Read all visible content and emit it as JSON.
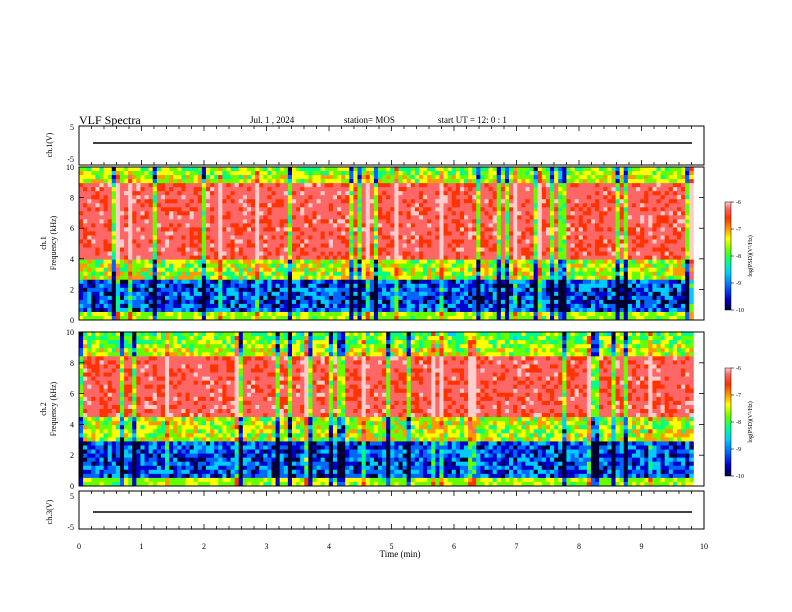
{
  "header": {
    "title": "VLF Spectra",
    "date": "Jul.  1  , 2024",
    "station": "station= MOS",
    "start": "start  UT  =   12: 0   : 1"
  },
  "panels": {
    "top_ylabel": "ch.1(V)",
    "ch1_label": "ch.1",
    "ch2_label": "ch.2",
    "freq_label": "Frequency  (kHz)",
    "bottom_ylabel": "ch.3(V)",
    "xlabel": "Time  (min)",
    "colorbar_label": "log(PSD)(V²/Hz)"
  },
  "chart_data": [
    {
      "type": "line",
      "name": "ch.1 waveform",
      "ylabel": "ch.1(V)",
      "ylim": [
        -5,
        5
      ],
      "yticks": [
        "5",
        "-5"
      ],
      "xlim": [
        0,
        10
      ],
      "baseline_value": 0
    },
    {
      "type": "heatmap",
      "ylabel": "Frequency  (kHz)",
      "ylim": [
        0,
        10
      ],
      "yticks": [
        "0",
        "2",
        "4",
        "6",
        "8",
        "10"
      ],
      "xlim": [
        0,
        10
      ],
      "x_end": 9.83,
      "intense_band_khz": [
        4,
        9
      ],
      "colorbar": {
        "label": "log(PSD)(V²/Hz)",
        "range": [
          -10,
          -6
        ],
        "ticks": [
          "-6",
          "-7",
          "-8",
          "-9",
          "-10"
        ]
      }
    },
    {
      "type": "heatmap",
      "ylabel": "Frequency  (kHz)",
      "ylim": [
        0,
        10
      ],
      "yticks": [
        "0",
        "2",
        "4",
        "6",
        "8",
        "10"
      ],
      "xlim": [
        0,
        10
      ],
      "x_end": 9.83,
      "intense_band_khz": [
        4.5,
        8.5
      ],
      "colorbar": {
        "label": "log(PSD)(V²/Hz)",
        "range": [
          -10,
          -6
        ],
        "ticks": [
          "-6",
          "-7",
          "-8",
          "-9",
          "-10"
        ]
      }
    },
    {
      "type": "line",
      "name": "ch.3 waveform",
      "ylabel": "ch.3(V)",
      "ylim": [
        -5,
        5
      ],
      "yticks": [
        "5",
        "-5"
      ],
      "xlim": [
        0,
        10
      ],
      "xlabel": "Time  (min)",
      "xticks": [
        "0",
        "1",
        "2",
        "3",
        "4",
        "5",
        "6",
        "7",
        "8",
        "9",
        "10"
      ],
      "baseline_value": 0
    }
  ],
  "colors": {
    "scale": [
      "#000033",
      "#0000cc",
      "#0066ff",
      "#00ccff",
      "#00ff88",
      "#66ff00",
      "#ffff00",
      "#ff9900",
      "#ff3300",
      "#ff6666",
      "#ffcccc"
    ]
  }
}
